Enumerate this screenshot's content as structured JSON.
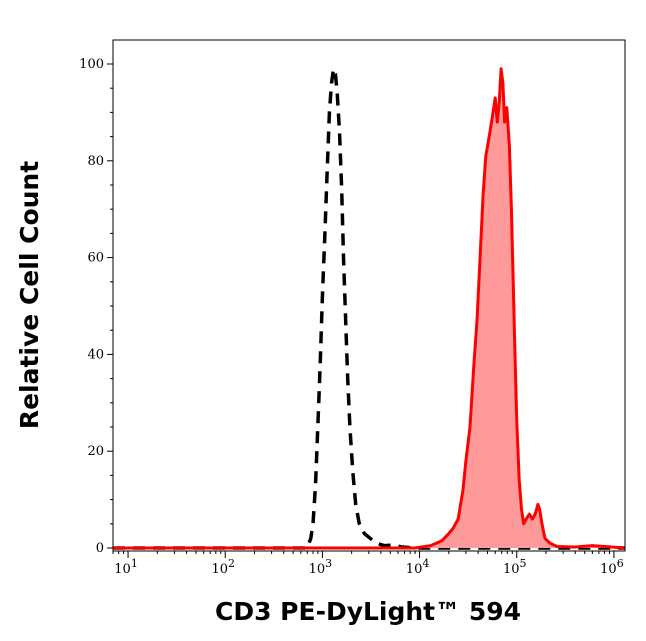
{
  "chart_data": {
    "type": "area",
    "xlabel": "CD3 PE-DyLight™ 594",
    "ylabel": "Relative Cell Count",
    "x_scale": "log",
    "xlim": [
      7,
      1300000
    ],
    "ylim": [
      0,
      105
    ],
    "x_ticks": [
      {
        "value": 10,
        "base": "10",
        "exp": "1"
      },
      {
        "value": 100,
        "base": "10",
        "exp": "2"
      },
      {
        "value": 1000,
        "base": "10",
        "exp": "3"
      },
      {
        "value": 10000,
        "base": "10",
        "exp": "4"
      },
      {
        "value": 100000,
        "base": "10",
        "exp": "5"
      },
      {
        "value": 1000000,
        "base": "10",
        "exp": "6"
      }
    ],
    "y_ticks": [
      "0",
      "20",
      "40",
      "60",
      "80",
      "100"
    ],
    "grid": false,
    "legend": "none",
    "series": [
      {
        "style": "dashed",
        "color": "#000000",
        "fill": "none",
        "points": [
          [
            7,
            0
          ],
          [
            300,
            0
          ],
          [
            700,
            0
          ],
          [
            760,
            2
          ],
          [
            800,
            5
          ],
          [
            850,
            13
          ],
          [
            900,
            26
          ],
          [
            950,
            38
          ],
          [
            1000,
            52
          ],
          [
            1060,
            65
          ],
          [
            1120,
            78
          ],
          [
            1180,
            90
          ],
          [
            1240,
            96
          ],
          [
            1300,
            99
          ],
          [
            1360,
            98
          ],
          [
            1420,
            94
          ],
          [
            1500,
            86
          ],
          [
            1580,
            74
          ],
          [
            1650,
            60
          ],
          [
            1730,
            48
          ],
          [
            1820,
            35
          ],
          [
            1920,
            25
          ],
          [
            2050,
            16
          ],
          [
            2200,
            9
          ],
          [
            2400,
            5
          ],
          [
            2700,
            3
          ],
          [
            3100,
            2
          ],
          [
            3600,
            1
          ],
          [
            4300,
            0.5
          ],
          [
            5500,
            0.6
          ],
          [
            6500,
            0.2
          ],
          [
            9000,
            0
          ],
          [
            1300000,
            0
          ]
        ]
      },
      {
        "style": "solid",
        "color": "#ff0000",
        "fill": "#ff9a9a",
        "points": [
          [
            7,
            0
          ],
          [
            9000,
            0
          ],
          [
            13000,
            0.5
          ],
          [
            17000,
            1.5
          ],
          [
            20000,
            3
          ],
          [
            22000,
            4
          ],
          [
            25000,
            6
          ],
          [
            28000,
            12
          ],
          [
            30000,
            18
          ],
          [
            33000,
            25
          ],
          [
            36000,
            37
          ],
          [
            39000,
            47
          ],
          [
            42000,
            60
          ],
          [
            45000,
            73
          ],
          [
            48000,
            81
          ],
          [
            52000,
            85
          ],
          [
            56000,
            89
          ],
          [
            60000,
            93
          ],
          [
            63000,
            88
          ],
          [
            66000,
            92
          ],
          [
            69000,
            99
          ],
          [
            72000,
            96
          ],
          [
            75000,
            88
          ],
          [
            79000,
            91
          ],
          [
            84000,
            83
          ],
          [
            88000,
            70
          ],
          [
            92000,
            55
          ],
          [
            96000,
            40
          ],
          [
            100000,
            26
          ],
          [
            106000,
            14
          ],
          [
            112000,
            8
          ],
          [
            118000,
            5
          ],
          [
            125000,
            6
          ],
          [
            135000,
            7
          ],
          [
            145000,
            6
          ],
          [
            155000,
            7
          ],
          [
            165000,
            9
          ],
          [
            172000,
            8
          ],
          [
            182000,
            5
          ],
          [
            195000,
            2
          ],
          [
            220000,
            1
          ],
          [
            260000,
            0.3
          ],
          [
            400000,
            0.2
          ],
          [
            600000,
            0.5
          ],
          [
            1300000,
            0
          ]
        ]
      }
    ]
  }
}
